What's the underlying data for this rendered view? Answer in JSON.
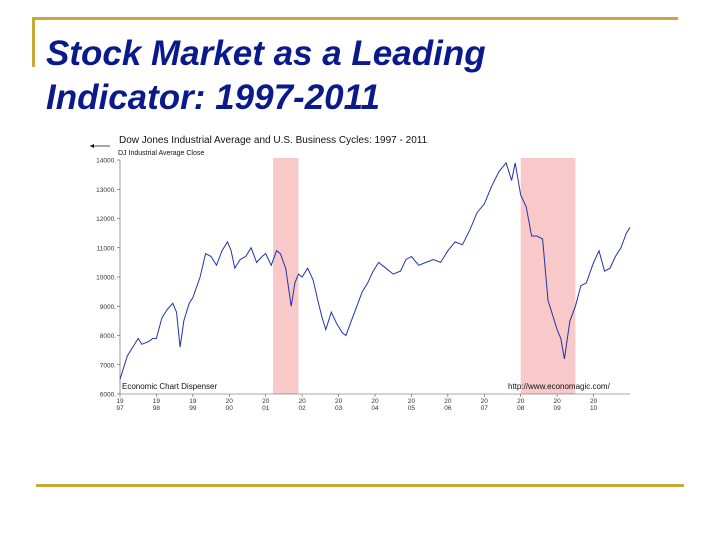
{
  "slide": {
    "title_line1": "Stock Market as a Leading",
    "title_line2": "Indicator: 1997-2011",
    "accent_color": "#c8a936",
    "title_color": "#0a1a8c"
  },
  "chart_data": {
    "type": "line",
    "title": "Dow Jones Industrial Average and U.S. Business Cycles: 1997 - 2011",
    "legend": "DJ Industrial Average Close",
    "legend_placement": "top-left",
    "source_left": "Economic Chart Dispenser",
    "source_right": "http://www.economagic.com/",
    "line_color": "#2233aa",
    "recession_color": "#f9c8c8",
    "grid": false,
    "ylim": [
      6000,
      14000
    ],
    "yticks": [
      "6000.",
      "7000.",
      "8000.",
      "9000.",
      "10000.",
      "11000.",
      "12000.",
      "13000.",
      "14000."
    ],
    "xlim": [
      1997.0,
      2011.0
    ],
    "xticks": [
      {
        "top": "19",
        "bottom": "97",
        "year": 1997
      },
      {
        "top": "19",
        "bottom": "98",
        "year": 1998
      },
      {
        "top": "19",
        "bottom": "99",
        "year": 1999
      },
      {
        "top": "20",
        "bottom": "00",
        "year": 2000
      },
      {
        "top": "20",
        "bottom": "01",
        "year": 2001
      },
      {
        "top": "20",
        "bottom": "02",
        "year": 2002
      },
      {
        "top": "20",
        "bottom": "03",
        "year": 2003
      },
      {
        "top": "20",
        "bottom": "04",
        "year": 2004
      },
      {
        "top": "20",
        "bottom": "05",
        "year": 2005
      },
      {
        "top": "20",
        "bottom": "06",
        "year": 2006
      },
      {
        "top": "20",
        "bottom": "07",
        "year": 2007
      },
      {
        "top": "20",
        "bottom": "08",
        "year": 2008
      },
      {
        "top": "20",
        "bottom": "09",
        "year": 2009
      },
      {
        "top": "20",
        "bottom": "10",
        "year": 2010
      }
    ],
    "recessions": [
      [
        2001.2,
        2001.9
      ],
      [
        2008.0,
        2009.5
      ]
    ],
    "series": [
      {
        "x": [
          1997.0,
          1997.1,
          1997.2,
          1997.35,
          1997.5,
          1997.6,
          1997.8,
          1997.9,
          1998.0,
          1998.15,
          1998.3,
          1998.45,
          1998.55,
          1998.65,
          1998.75,
          1998.9,
          1999.0,
          1999.2,
          1999.35,
          1999.5,
          1999.65,
          1999.8,
          1999.95,
          2000.05,
          2000.15,
          2000.3,
          2000.45,
          2000.6,
          2000.75,
          2000.9,
          2001.0,
          2001.15,
          2001.3,
          2001.4,
          2001.55,
          2001.7,
          2001.8,
          2001.9,
          2002.0,
          2002.15,
          2002.3,
          2002.45,
          2002.55,
          2002.65,
          2002.8,
          2002.95,
          2003.1,
          2003.2,
          2003.35,
          2003.5,
          2003.65,
          2003.8,
          2003.95,
          2004.1,
          2004.3,
          2004.5,
          2004.7,
          2004.85,
          2005.0,
          2005.2,
          2005.4,
          2005.6,
          2005.8,
          2006.0,
          2006.2,
          2006.4,
          2006.6,
          2006.8,
          2007.0,
          2007.2,
          2007.4,
          2007.6,
          2007.75,
          2007.85,
          2008.0,
          2008.15,
          2008.3,
          2008.45,
          2008.6,
          2008.75,
          2008.9,
          2009.0,
          2009.1,
          2009.2,
          2009.35,
          2009.5,
          2009.65,
          2009.8,
          2010.0,
          2010.15,
          2010.3,
          2010.45,
          2010.6,
          2010.75,
          2010.9,
          2011.0
        ],
        "y": [
          6500,
          6900,
          7300,
          7600,
          7900,
          7700,
          7800,
          7900,
          7900,
          8600,
          8900,
          9100,
          8800,
          7600,
          8500,
          9100,
          9300,
          10000,
          10800,
          10700,
          10400,
          10900,
          11200,
          10900,
          10300,
          10600,
          10700,
          11000,
          10500,
          10700,
          10800,
          10400,
          10900,
          10800,
          10300,
          9000,
          9800,
          10100,
          10000,
          10300,
          9900,
          9100,
          8600,
          8200,
          8800,
          8400,
          8100,
          8000,
          8500,
          9000,
          9500,
          9800,
          10200,
          10500,
          10300,
          10100,
          10200,
          10600,
          10700,
          10400,
          10500,
          10600,
          10500,
          10900,
          11200,
          11100,
          11600,
          12200,
          12500,
          13100,
          13600,
          13900,
          13300,
          13900,
          12800,
          12400,
          11400,
          11400,
          11300,
          9200,
          8600,
          8200,
          7900,
          7200,
          8500,
          9000,
          9700,
          9800,
          10500,
          10900,
          10200,
          10300,
          10700,
          11000,
          11500,
          11700
        ]
      }
    ]
  }
}
